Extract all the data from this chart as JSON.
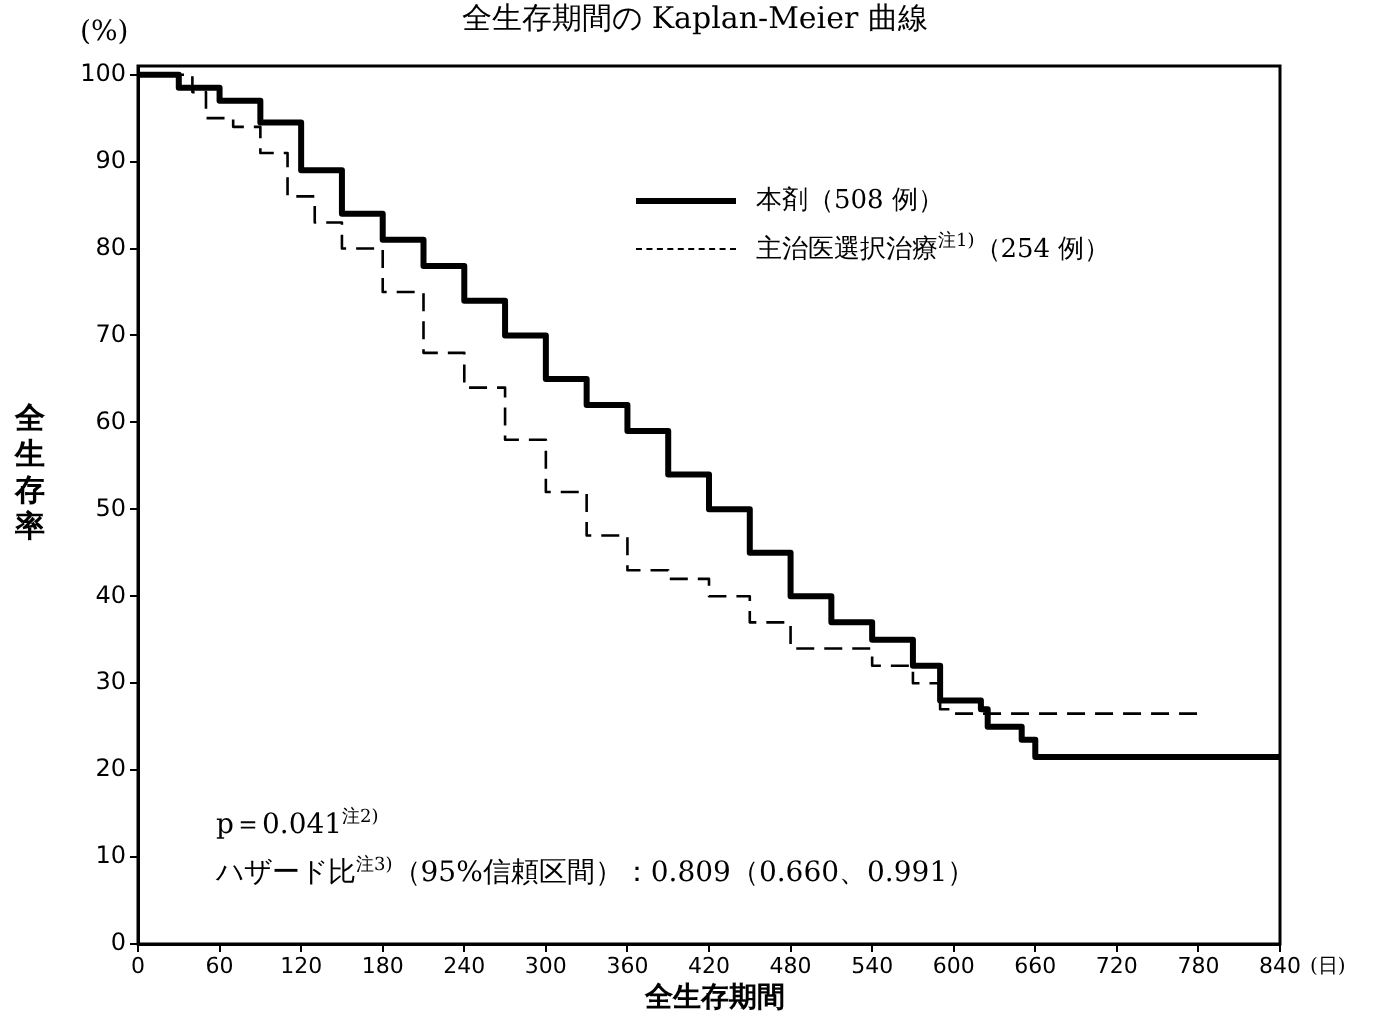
{
  "chart_data": {
    "type": "step",
    "title": "全生存期間の Kaplan-Meier 曲線",
    "xlabel": "全生存期間",
    "ylabel": "全生存率",
    "xlim": [
      0,
      840
    ],
    "xticks": [
      0,
      60,
      120,
      180,
      240,
      300,
      360,
      420,
      480,
      540,
      600,
      660,
      720,
      780,
      840
    ],
    "ylim": [
      0,
      101
    ],
    "yticks": [
      0,
      10,
      20,
      30,
      40,
      50,
      60,
      70,
      80,
      90,
      100
    ],
    "grid": false,
    "legend": "top right",
    "marker": "none",
    "series": [
      {
        "name": "本剤（508 例）",
        "color": "#000000",
        "line_style": "solid",
        "x": [
          0,
          30,
          60,
          90,
          120,
          150,
          180,
          210,
          240,
          270,
          300,
          330,
          360,
          390,
          420,
          450,
          480,
          510,
          540,
          570,
          590,
          620,
          625,
          645,
          650,
          660,
          840
        ],
        "values": [
          100,
          98.5,
          97,
          94.5,
          89,
          84,
          81,
          78,
          74,
          70,
          65,
          62,
          59,
          54,
          50,
          45,
          40,
          37,
          35,
          32,
          28,
          27,
          25,
          25,
          23.5,
          21.5,
          21.5
        ]
      },
      {
        "name": "主治医選択治療$^{注1)}$（254 例）",
        "color": "#000000",
        "line_style": "dashed",
        "x": [
          0,
          40,
          50,
          70,
          90,
          110,
          130,
          150,
          180,
          210,
          240,
          270,
          300,
          330,
          360,
          390,
          420,
          450,
          480,
          510,
          540,
          570,
          590,
          600,
          780
        ],
        "values": [
          100,
          98,
          95,
          94,
          91,
          86,
          83,
          80,
          75,
          68,
          64,
          58,
          52,
          47,
          43,
          42,
          40,
          37,
          34,
          34,
          32,
          30,
          27,
          26.5,
          26.5
        ]
      }
    ],
    "annotations": [
      "(%)",
      "(日)",
      "p＝0.041$^{注2)}$",
      "ハザード比$^{注3)}$（95%信頼区間）：0.809（0.660、0.991）"
    ]
  }
}
